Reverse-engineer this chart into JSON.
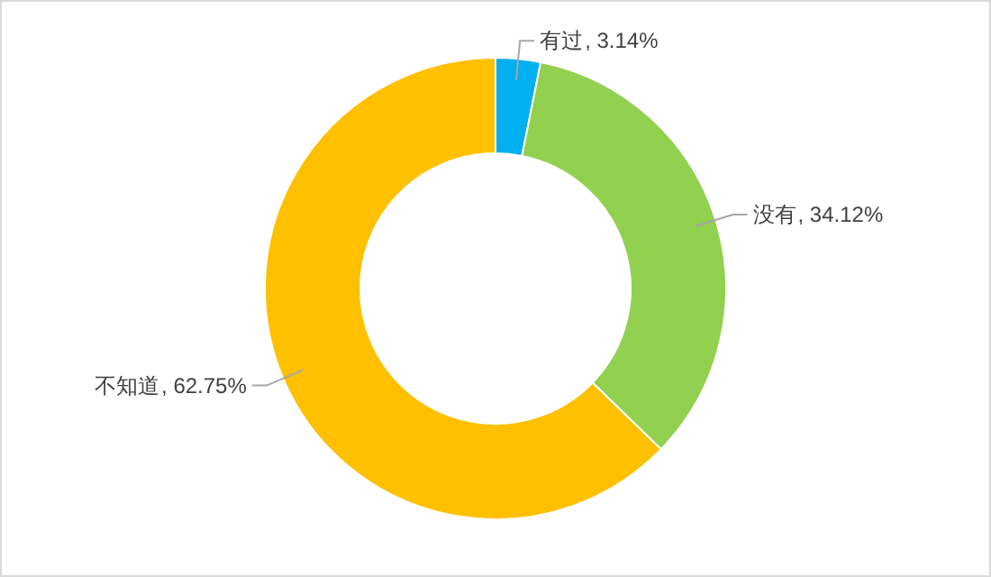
{
  "chart_data": {
    "type": "donut",
    "categories": [
      "有过",
      "没有",
      "不知道"
    ],
    "values": [
      3.14,
      34.12,
      62.75
    ],
    "value_labels": [
      ", 3.14%",
      ", 34.12%",
      ", 62.75%"
    ],
    "colors": [
      "#00b0f0",
      "#92d050",
      "#ffc000"
    ]
  }
}
